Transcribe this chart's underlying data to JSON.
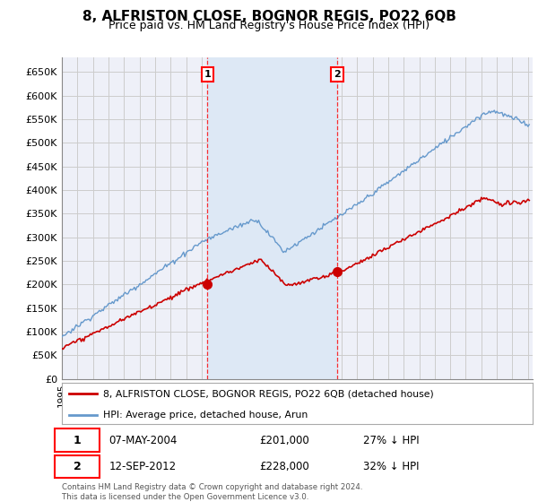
{
  "title": "8, ALFRISTON CLOSE, BOGNOR REGIS, PO22 6QB",
  "subtitle": "Price paid vs. HM Land Registry's House Price Index (HPI)",
  "ylabel_ticks": [
    "£0",
    "£50K",
    "£100K",
    "£150K",
    "£200K",
    "£250K",
    "£300K",
    "£350K",
    "£400K",
    "£450K",
    "£500K",
    "£550K",
    "£600K",
    "£650K"
  ],
  "ytick_values": [
    0,
    50000,
    100000,
    150000,
    200000,
    250000,
    300000,
    350000,
    400000,
    450000,
    500000,
    550000,
    600000,
    650000
  ],
  "ylim": [
    0,
    680000
  ],
  "xlim_start": 1995.0,
  "xlim_end": 2025.3,
  "legend_line1": "8, ALFRISTON CLOSE, BOGNOR REGIS, PO22 6QB (detached house)",
  "legend_line2": "HPI: Average price, detached house, Arun",
  "sale1_date": "07-MAY-2004",
  "sale1_price": "£201,000",
  "sale1_hpi": "27% ↓ HPI",
  "sale2_date": "12-SEP-2012",
  "sale2_price": "£228,000",
  "sale2_hpi": "32% ↓ HPI",
  "footnote": "Contains HM Land Registry data © Crown copyright and database right 2024.\nThis data is licensed under the Open Government Licence v3.0.",
  "line_color_red": "#cc0000",
  "line_color_blue": "#6699cc",
  "shade_color": "#dde8f5",
  "marker1_x": 2004.37,
  "marker2_x": 2012.71,
  "marker1_y": 201000,
  "marker2_y": 228000,
  "background_color": "#ffffff",
  "grid_color": "#cccccc",
  "plot_bg": "#eef0f8"
}
